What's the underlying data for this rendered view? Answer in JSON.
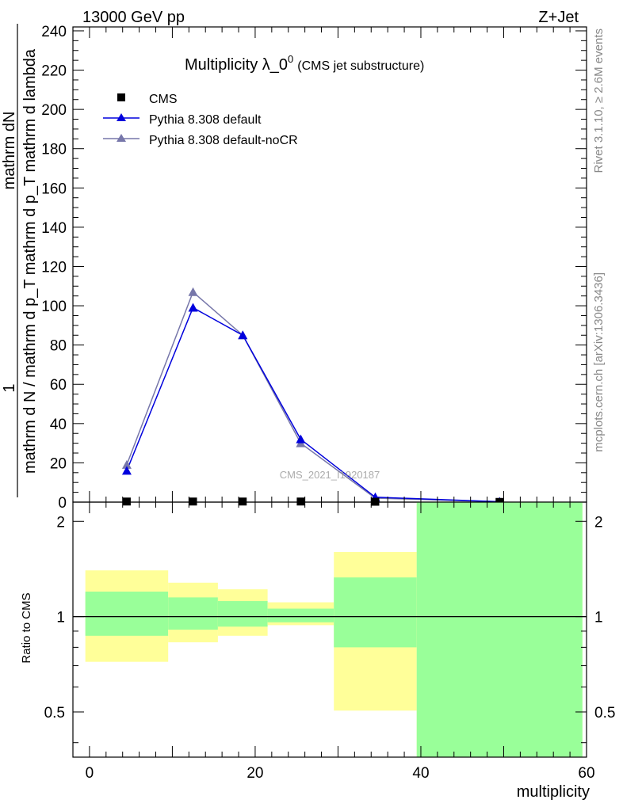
{
  "header": {
    "left": "13000 GeV pp",
    "right": "Z+Jet"
  },
  "title_main": "Multiplicity λ_0",
  "title_sup": "0",
  "title_sub": "(CMS jet substructure)",
  "ylabel_top": "1",
  "ylabel_top_den": "mathrm d N / mathrm d p_T mathrm d p_T mathrm d lambda",
  "ylabel_top_num": "mathrm dN",
  "ylabel_bottom": "Ratio to CMS",
  "xlabel": "multiplicity",
  "side_text_1": "Rivet 3.1.10, ≥ 2.6M events",
  "side_text_2": "mcplots.cern.ch [arXiv:1306.3436]",
  "watermark": "CMS_2021_I1920187",
  "colors": {
    "data": "#000000",
    "pythia_default": "#0000dd",
    "pythia_nocr": "#7777aa",
    "band_inner": "#99ff99",
    "band_outer": "#ffff99"
  },
  "chart_data": [
    {
      "type": "line",
      "title": "Multiplicity λ_0^0 (CMS jet substructure)",
      "ylabel": "1 / mathrm d N / mathrm d p_T mathrm d p_T mathrm d lambda · mathrm dN",
      "xlim": [
        -2,
        60
      ],
      "ylim": [
        0,
        242
      ],
      "yticks": [
        0,
        20,
        40,
        60,
        80,
        100,
        120,
        140,
        160,
        180,
        200,
        220,
        240
      ],
      "legend_position": "top-left",
      "series": [
        {
          "name": "CMS",
          "marker": "square",
          "x": [
            4.5,
            12.5,
            18.5,
            25.5,
            34.5,
            49.5
          ],
          "y": [
            0.3,
            0.3,
            0.3,
            0.3,
            0.2,
            0.1
          ]
        },
        {
          "name": "Pythia 8.308 default",
          "marker": "triangle",
          "x": [
            4.5,
            12.5,
            18.5,
            25.5,
            34.5,
            49.5
          ],
          "y": [
            16,
            99,
            85,
            32,
            2.5,
            0.2
          ]
        },
        {
          "name": "Pythia 8.308 default-noCR",
          "marker": "triangle",
          "x": [
            4.5,
            12.5,
            18.5,
            25.5,
            34.5,
            49.5
          ],
          "y": [
            19,
            107,
            85,
            30,
            2,
            0.2
          ]
        }
      ]
    },
    {
      "type": "area",
      "ylabel": "Ratio to CMS",
      "xlabel": "multiplicity",
      "xlim": [
        -2,
        60
      ],
      "ylim": [
        0.36,
        2.3
      ],
      "y_scale": "log",
      "yticks": [
        0.5,
        1,
        2
      ],
      "xticks": [
        0,
        20,
        40,
        60
      ],
      "reference_line": 1,
      "bins": [
        {
          "x0": -0.5,
          "x1": 9.5,
          "inner": [
            0.87,
            1.2
          ],
          "outer": [
            0.72,
            1.4
          ]
        },
        {
          "x0": 9.5,
          "x1": 15.5,
          "inner": [
            0.91,
            1.15
          ],
          "outer": [
            0.83,
            1.28
          ]
        },
        {
          "x0": 15.5,
          "x1": 21.5,
          "inner": [
            0.93,
            1.12
          ],
          "outer": [
            0.87,
            1.22
          ]
        },
        {
          "x0": 21.5,
          "x1": 29.5,
          "inner": [
            0.96,
            1.06
          ],
          "outer": [
            0.94,
            1.11
          ]
        },
        {
          "x0": 29.5,
          "x1": 39.5,
          "inner": [
            0.8,
            1.33
          ],
          "outer": [
            0.505,
            1.6
          ]
        },
        {
          "x0": 39.5,
          "x1": 59.5,
          "inner": [
            0.36,
            2.3
          ],
          "outer": [
            0.36,
            2.3
          ]
        }
      ]
    }
  ]
}
